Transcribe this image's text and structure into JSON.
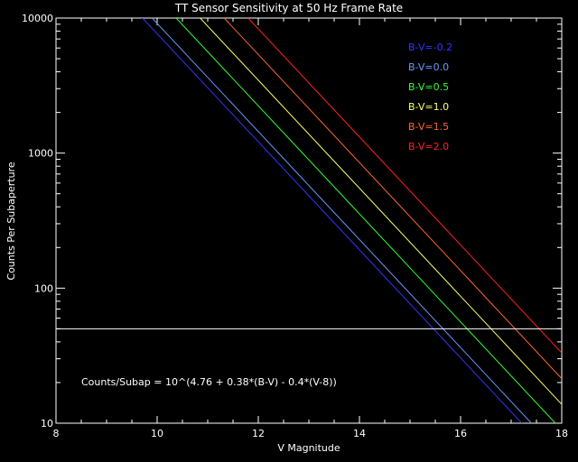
{
  "chart_data": {
    "type": "line",
    "title": "TT Sensor Sensitivity at 50 Hz Frame Rate",
    "xlabel": "V Magnitude",
    "ylabel": "Counts Per Subaperture",
    "xlim": [
      8,
      18
    ],
    "ylim": [
      10,
      10000
    ],
    "yscale": "log",
    "grid": false,
    "legend_position": "top-right",
    "x_ticks": [
      "8",
      "10",
      "12",
      "14",
      "16",
      "18"
    ],
    "y_ticks": [
      "10",
      "100",
      "1000",
      "10000"
    ],
    "x_tick_values": [
      8,
      10,
      12,
      14,
      16,
      18
    ],
    "y_tick_values": [
      10,
      100,
      1000,
      10000
    ],
    "annotation": "Counts/Subap = 10^(4.76 + 0.38*(B-V) - 0.4*(V-8))",
    "formula": {
      "a": 4.76,
      "b": 0.38,
      "c": 0.4,
      "v0": 8
    },
    "threshold": {
      "value": 50,
      "color": "#ffffff"
    },
    "series": [
      {
        "name": "B-V=-0.2",
        "bv": -0.2,
        "color": "#3333ff"
      },
      {
        "name": "B-V=0.0",
        "bv": 0.0,
        "color": "#6699ff"
      },
      {
        "name": "B-V=0.5",
        "bv": 0.5,
        "color": "#33ff33"
      },
      {
        "name": "B-V=1.0",
        "bv": 1.0,
        "color": "#ffff66"
      },
      {
        "name": "B-V=1.5",
        "bv": 1.5,
        "color": "#ff6633"
      },
      {
        "name": "B-V=2.0",
        "bv": 2.0,
        "color": "#ff2222"
      }
    ]
  }
}
